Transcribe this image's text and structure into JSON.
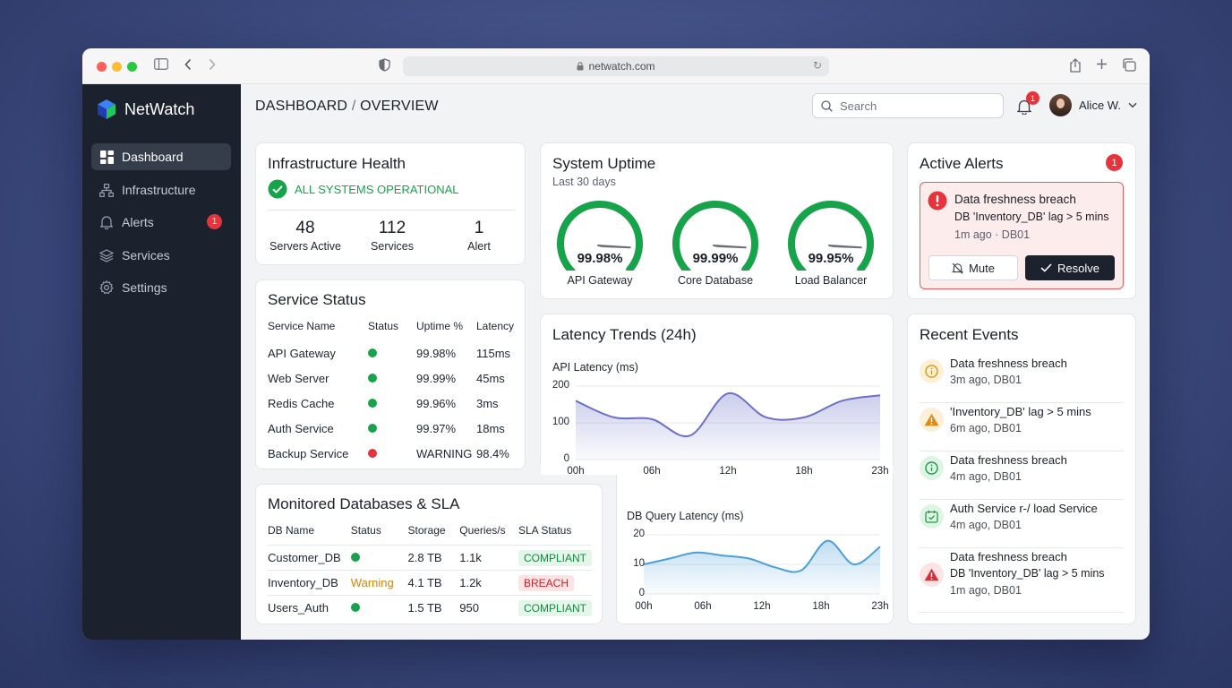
{
  "browser": {
    "url": "netwatch.com"
  },
  "sidebar": {
    "brand": "NetWatch",
    "items": [
      {
        "label": "Dashboard",
        "icon": "dashboard-icon",
        "active": true
      },
      {
        "label": "Infrastructure",
        "icon": "network-icon"
      },
      {
        "label": "Alerts",
        "icon": "bell-icon",
        "badge": "1"
      },
      {
        "label": "Services",
        "icon": "layers-icon"
      },
      {
        "label": "Settings",
        "icon": "gear-icon"
      }
    ]
  },
  "header": {
    "title_main": "DASHBOARD",
    "title_sep": "/",
    "title_sub": "OVERVIEW",
    "search_placeholder": "Search",
    "notifications": "1",
    "user_name": "Alice W."
  },
  "infra": {
    "title": "Infrastructure Health",
    "status": "ALL SYSTEMS OPERATIONAL",
    "stats": [
      {
        "value": "48",
        "label": "Servers Active"
      },
      {
        "value": "112",
        "label": "Services"
      },
      {
        "value": "1",
        "label": "Alert"
      }
    ]
  },
  "uptime": {
    "title": "System Uptime",
    "subtitle": "Last 30 days",
    "gauges": [
      {
        "value": "99.98%",
        "label": "API Gateway",
        "fraction": 0.9998
      },
      {
        "value": "99.99%",
        "label": "Core Database",
        "fraction": 0.9999
      },
      {
        "value": "99.95%",
        "label": "Load Balancer",
        "fraction": 0.9995
      }
    ]
  },
  "alerts": {
    "title": "Active Alerts",
    "count": "1",
    "item": {
      "title": "Data freshness breach",
      "detail": "DB 'Inventory_DB' lag > 5 mins",
      "meta": "1m ago · DB01"
    },
    "mute_label": "Mute",
    "resolve_label": "Resolve"
  },
  "services": {
    "title": "Service Status",
    "columns": [
      "Service Name",
      "Status",
      "Uptime %",
      "Latency"
    ],
    "rows": [
      {
        "name": "API Gateway",
        "status": "green",
        "uptime": "99.98%",
        "latency": "115ms"
      },
      {
        "name": "Web Server",
        "status": "green",
        "uptime": "99.99%",
        "latency": "45ms"
      },
      {
        "name": "Redis Cache",
        "status": "green",
        "uptime": "99.96%",
        "latency": "3ms"
      },
      {
        "name": "Auth Service",
        "status": "green",
        "uptime": "99.97%",
        "latency": "18ms"
      },
      {
        "name": "Backup Service",
        "status": "red",
        "uptime": "WARNING",
        "latency": "98.4%"
      }
    ]
  },
  "databases": {
    "title": "Monitored Databases & SLA",
    "columns": [
      "DB Name",
      "Status",
      "Storage",
      "Queries/s",
      "SLA Status"
    ],
    "rows": [
      {
        "name": "Customer_DB",
        "status": "",
        "storage": "2.8 TB",
        "qps": "1.1k",
        "sla": "COMPLIANT"
      },
      {
        "name": "Inventory_DB",
        "status": "Warning",
        "storage": "4.1 TB",
        "qps": "1.2k",
        "sla": "BREACH"
      },
      {
        "name": "Users_Auth",
        "status": "",
        "storage": "1.5 TB",
        "qps": "950",
        "sla": "COMPLIANT"
      }
    ]
  },
  "latency": {
    "title": "Latency Trends (24h)"
  },
  "chart_data": [
    {
      "type": "area",
      "title": "API Latency (ms)",
      "x": [
        "00h",
        "03h",
        "06h",
        "09h",
        "12h",
        "15h",
        "18h",
        "21h",
        "23h"
      ],
      "values": [
        160,
        115,
        110,
        65,
        180,
        115,
        115,
        160,
        175
      ],
      "ylim": [
        0,
        200
      ],
      "yticks": [
        "200",
        "100",
        "0"
      ],
      "xticks": [
        "00h",
        "06h",
        "12h",
        "18h",
        "23h"
      ],
      "color": "#6b70c8"
    },
    {
      "type": "area",
      "title": "DB Query Latency (ms)",
      "x": [
        "00h",
        "03h",
        "06h",
        "09h",
        "12h",
        "14h",
        "16h",
        "18h",
        "20h",
        "23h"
      ],
      "values": [
        10,
        12,
        14,
        13,
        12,
        9,
        8,
        18,
        10,
        16
      ],
      "ylim": [
        0,
        20
      ],
      "yticks": [
        "20",
        "10",
        "0"
      ],
      "xticks": [
        "00h",
        "06h",
        "12h",
        "18h",
        "23h"
      ],
      "color": "#4a9fd8"
    }
  ],
  "events": {
    "title": "Recent Events",
    "items": [
      {
        "title": "Data freshness breach",
        "sub": "3m ago, DB01",
        "icon": "info-icon",
        "kind": "amber"
      },
      {
        "title": "'Inventory_DB' lag > 5 mins",
        "sub": "6m ago, DB01",
        "icon": "warning-icon",
        "kind": "orange"
      },
      {
        "title": "Data freshness breach",
        "sub": "4m ago, DB01",
        "icon": "info-icon",
        "kind": "green"
      },
      {
        "title": "Auth Service r-/ load Service",
        "sub": "4m ago, DB01",
        "icon": "calendar-check-icon",
        "kind": "green"
      },
      {
        "title": "Data freshness breach",
        "detail": "DB 'Inventory_DB' lag > 5 mins",
        "sub": "1m ago, DB01",
        "icon": "warning-icon",
        "kind": "red"
      }
    ]
  },
  "colors": {
    "accent_green": "#16a34a",
    "alert_red": "#e5343b",
    "warning_amber": "#d48410",
    "sidebar_bg": "#1b212d"
  }
}
